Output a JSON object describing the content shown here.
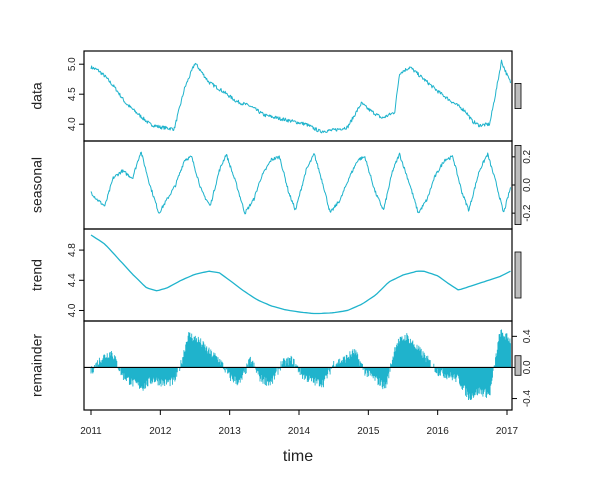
{
  "chart_data": {
    "type": "line",
    "subtype": "stl-decomposition",
    "xlabel": "time",
    "x_ticks": [
      "2011",
      "2012",
      "2013",
      "2014",
      "2015",
      "2016",
      "2017"
    ],
    "xlim": [
      2011,
      2017.1
    ],
    "color": "#1fb3cc",
    "panels": [
      {
        "id": "data",
        "label": "data",
        "yticks": [
          "4.0",
          "4.5",
          "5.0"
        ],
        "ytick_values": [
          4.0,
          4.5,
          5.0
        ],
        "ylim": [
          3.82,
          5.12
        ],
        "tick_side": "left",
        "range_bar_fraction": 0.28,
        "x": [
          2011.0,
          2011.1,
          2011.2,
          2011.35,
          2011.5,
          2011.7,
          2011.85,
          2012.0,
          2012.2,
          2012.35,
          2012.5,
          2012.7,
          2012.9,
          2013.1,
          2013.3,
          2013.5,
          2013.7,
          2013.9,
          2014.1,
          2014.3,
          2014.5,
          2014.7,
          2014.8,
          2014.9,
          2015.0,
          2015.2,
          2015.38,
          2015.45,
          2015.6,
          2015.8,
          2016.0,
          2016.2,
          2016.4,
          2016.5,
          2016.6,
          2016.75,
          2016.85,
          2016.92,
          2017.0,
          2017.05
        ],
        "values": [
          4.95,
          4.9,
          4.8,
          4.6,
          4.35,
          4.15,
          4.0,
          3.95,
          3.92,
          4.6,
          5.02,
          4.7,
          4.55,
          4.38,
          4.3,
          4.15,
          4.1,
          4.05,
          4.0,
          3.88,
          3.9,
          3.95,
          4.15,
          4.35,
          4.25,
          4.1,
          4.2,
          4.85,
          4.95,
          4.75,
          4.55,
          4.38,
          4.22,
          4.05,
          3.98,
          4.0,
          4.6,
          5.05,
          4.82,
          4.7
        ]
      },
      {
        "id": "seasonal",
        "label": "seasonal",
        "yticks": [
          "-0.2",
          "0.0",
          "0.2"
        ],
        "ytick_values": [
          -0.2,
          0.0,
          0.2
        ],
        "ylim": [
          -0.27,
          0.27
        ],
        "tick_side": "right",
        "range_bar_fraction": 0.9,
        "x": [
          2011.0,
          2011.08,
          2011.2,
          2011.32,
          2011.45,
          2011.6,
          2011.72,
          2011.85,
          2011.98,
          2012.1,
          2012.22,
          2012.35,
          2012.45,
          2012.6,
          2012.72,
          2012.85,
          2012.95,
          2013.1,
          2013.22,
          2013.35,
          2013.45,
          2013.6,
          2013.72,
          2013.85,
          2013.95,
          2014.1,
          2014.22,
          2014.35,
          2014.45,
          2014.6,
          2014.72,
          2014.85,
          2014.95,
          2015.1,
          2015.22,
          2015.35,
          2015.45,
          2015.6,
          2015.72,
          2015.85,
          2015.95,
          2016.1,
          2016.22,
          2016.35,
          2016.45,
          2016.6,
          2016.72,
          2016.85,
          2016.95,
          2017.05
        ],
        "values": [
          -0.05,
          -0.1,
          -0.15,
          0.05,
          0.1,
          0.05,
          0.24,
          0.0,
          -0.2,
          -0.1,
          0.0,
          0.18,
          0.2,
          -0.05,
          -0.15,
          0.1,
          0.22,
          0.0,
          -0.2,
          -0.1,
          0.05,
          0.18,
          0.2,
          -0.05,
          -0.18,
          0.1,
          0.22,
          0.0,
          -0.2,
          -0.1,
          0.05,
          0.18,
          0.2,
          -0.05,
          -0.18,
          0.1,
          0.22,
          0.0,
          -0.2,
          -0.1,
          0.05,
          0.18,
          0.2,
          -0.05,
          -0.18,
          0.1,
          0.22,
          0.0,
          -0.2,
          -0.02
        ]
      },
      {
        "id": "trend",
        "label": "trend",
        "yticks": [
          "4.0",
          "4.4",
          "4.8"
        ],
        "ytick_values": [
          4.0,
          4.4,
          4.8
        ],
        "ylim": [
          3.94,
          5.0
        ],
        "tick_side": "left",
        "range_bar_fraction": 0.5,
        "x": [
          2011.0,
          2011.2,
          2011.4,
          2011.6,
          2011.8,
          2011.95,
          2012.1,
          2012.3,
          2012.5,
          2012.7,
          2012.85,
          2013.0,
          2013.2,
          2013.4,
          2013.6,
          2013.8,
          2014.0,
          2014.2,
          2014.3,
          2014.5,
          2014.7,
          2014.9,
          2015.1,
          2015.3,
          2015.5,
          2015.7,
          2015.8,
          2016.0,
          2016.15,
          2016.3,
          2016.5,
          2016.7,
          2016.9,
          2017.05
        ],
        "values": [
          5.0,
          4.88,
          4.68,
          4.48,
          4.3,
          4.26,
          4.3,
          4.4,
          4.48,
          4.52,
          4.5,
          4.4,
          4.26,
          4.14,
          4.06,
          4.01,
          3.98,
          3.96,
          3.96,
          3.97,
          4.0,
          4.08,
          4.2,
          4.38,
          4.47,
          4.52,
          4.52,
          4.46,
          4.36,
          4.27,
          4.33,
          4.39,
          4.45,
          4.52
        ]
      },
      {
        "id": "remainder",
        "label": "remainder",
        "yticks": [
          "-0.4",
          "0.0",
          "0.4"
        ],
        "ytick_values": [
          -0.4,
          0.0,
          0.4
        ],
        "ylim": [
          -0.47,
          0.52
        ],
        "tick_side": "right",
        "range_bar_fraction": 0.22,
        "baseline": 0.0,
        "x": [
          2011.0,
          2011.15,
          2011.3,
          2011.45,
          2011.6,
          2011.75,
          2011.9,
          2012.05,
          2012.2,
          2012.3,
          2012.4,
          2012.55,
          2012.7,
          2012.85,
          2013.0,
          2013.15,
          2013.3,
          2013.45,
          2013.6,
          2013.75,
          2013.9,
          2014.05,
          2014.2,
          2014.35,
          2014.5,
          2014.65,
          2014.8,
          2014.95,
          2015.1,
          2015.25,
          2015.4,
          2015.55,
          2015.7,
          2015.85,
          2016.0,
          2016.15,
          2016.3,
          2016.45,
          2016.6,
          2016.75,
          2016.9,
          2017.05
        ],
        "values": [
          -0.05,
          0.12,
          0.2,
          -0.1,
          -0.2,
          -0.25,
          -0.15,
          -0.2,
          -0.18,
          0.05,
          0.42,
          0.35,
          0.2,
          0.1,
          -0.12,
          -0.2,
          0.1,
          -0.15,
          -0.2,
          0.05,
          0.1,
          -0.1,
          -0.18,
          -0.2,
          0.05,
          0.1,
          0.2,
          -0.05,
          -0.15,
          -0.25,
          0.3,
          0.4,
          0.25,
          0.1,
          -0.05,
          -0.1,
          -0.15,
          -0.38,
          -0.3,
          -0.35,
          0.45,
          0.35
        ]
      }
    ]
  }
}
